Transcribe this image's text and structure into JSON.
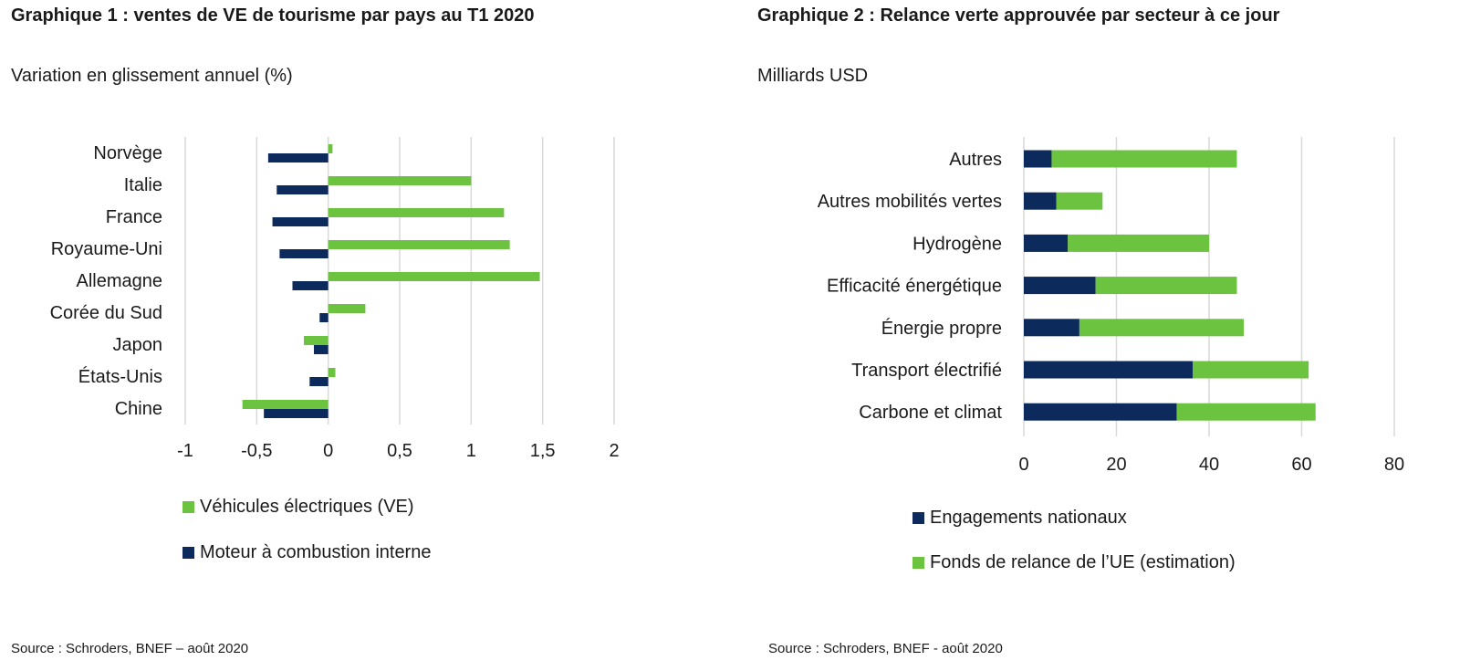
{
  "chart_data": [
    {
      "type": "bar",
      "orientation": "horizontal",
      "title": "Graphique 1 : ventes de VE de tourisme par pays au T1 2020",
      "subtitle": "Variation en glissement annuel (%)",
      "categories": [
        "Norvège",
        "Italie",
        "France",
        "Royaume-Uni",
        "Allemagne",
        "Corée du Sud",
        "Japon",
        "États-Unis",
        "Chine"
      ],
      "series": [
        {
          "name": "Véhicules électriques (VE)",
          "color": "#6cc33f",
          "values": [
            0.03,
            1.0,
            1.23,
            1.27,
            1.48,
            0.26,
            -0.17,
            0.05,
            -0.6
          ]
        },
        {
          "name": "Moteur à combustion interne",
          "color": "#0d2a5c",
          "values": [
            -0.42,
            -0.36,
            -0.39,
            -0.34,
            -0.25,
            -0.06,
            -0.1,
            -0.13,
            -0.45
          ]
        }
      ],
      "xlim": [
        -1,
        2
      ],
      "xticks": [
        -1,
        -0.5,
        0,
        0.5,
        1,
        1.5,
        2
      ],
      "xtick_labels": [
        "-1",
        "-0,5",
        "0",
        "0,5",
        "1",
        "1,5",
        "2"
      ],
      "grid": true,
      "legend_position": "bottom",
      "source": "Source : Schroders, BNEF – août 2020"
    },
    {
      "type": "bar",
      "orientation": "horizontal",
      "stacked": true,
      "title": "Graphique 2 : Relance verte approuvée par secteur à ce jour",
      "subtitle": "Milliards USD",
      "categories": [
        "Autres",
        "Autres mobilités vertes",
        "Hydrogène",
        "Efficacité énergétique",
        "Énergie propre",
        "Transport électrifié",
        "Carbone et climat"
      ],
      "series": [
        {
          "name": "Engagements nationaux",
          "color": "#0d2a5c",
          "values": [
            6,
            7,
            9.5,
            15.5,
            12,
            36.5,
            33
          ]
        },
        {
          "name": "Fonds de relance de l’UE (estimation)",
          "color": "#6cc33f",
          "values": [
            40,
            10,
            30.5,
            30.5,
            35.5,
            25,
            30
          ]
        }
      ],
      "xlim": [
        0,
        80
      ],
      "xticks": [
        0,
        20,
        40,
        60,
        80
      ],
      "xtick_labels": [
        "0",
        "20",
        "40",
        "60",
        "80"
      ],
      "grid": true,
      "legend_position": "bottom",
      "source": "Source : Schroders, BNEF - août 2020"
    }
  ]
}
